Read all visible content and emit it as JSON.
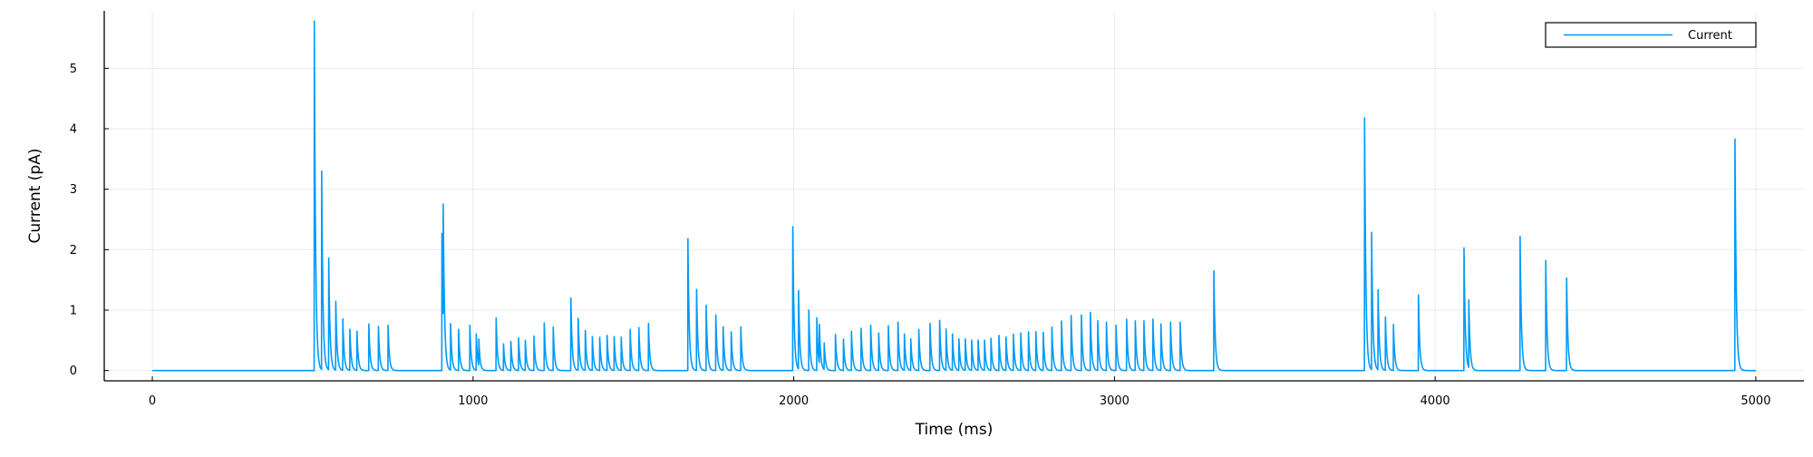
{
  "chart_data": {
    "type": "line",
    "xlabel": "Time (ms)",
    "ylabel": "Current (pA)",
    "xlim": [
      -150,
      5150
    ],
    "ylim": [
      -0.17,
      5.95
    ],
    "xticks": [
      0,
      1000,
      2000,
      3000,
      4000,
      5000
    ],
    "xtick_labels": [
      "0",
      "1000",
      "2000",
      "3000",
      "4000",
      "5000"
    ],
    "yticks": [
      0,
      1,
      2,
      3,
      4,
      5
    ],
    "ytick_labels": [
      "0",
      "1",
      "2",
      "3",
      "4",
      "5"
    ],
    "grid": true,
    "legend_position": "top-right",
    "series": [
      {
        "name": "Current",
        "color": "#009AFA",
        "x_range": [
          0,
          5000
        ],
        "baseline": 0,
        "spike_decay_ms": 4,
        "spikes": [
          {
            "t": 505,
            "a": 5.78
          },
          {
            "t": 528,
            "a": 3.28
          },
          {
            "t": 550,
            "a": 1.85
          },
          {
            "t": 572,
            "a": 1.14
          },
          {
            "t": 594,
            "a": 0.85
          },
          {
            "t": 616,
            "a": 0.68
          },
          {
            "t": 638,
            "a": 0.65
          },
          {
            "t": 675,
            "a": 0.77
          },
          {
            "t": 705,
            "a": 0.73
          },
          {
            "t": 735,
            "a": 0.75
          },
          {
            "t": 903,
            "a": 2.27
          },
          {
            "t": 907,
            "a": 1.92
          },
          {
            "t": 930,
            "a": 0.77
          },
          {
            "t": 955,
            "a": 0.68
          },
          {
            "t": 990,
            "a": 0.75
          },
          {
            "t": 1010,
            "a": 0.6
          },
          {
            "t": 1018,
            "a": 0.44
          },
          {
            "t": 1072,
            "a": 0.87
          },
          {
            "t": 1095,
            "a": 0.44
          },
          {
            "t": 1118,
            "a": 0.48
          },
          {
            "t": 1142,
            "a": 0.54
          },
          {
            "t": 1163,
            "a": 0.5
          },
          {
            "t": 1190,
            "a": 0.57
          },
          {
            "t": 1222,
            "a": 0.79
          },
          {
            "t": 1250,
            "a": 0.72
          },
          {
            "t": 1305,
            "a": 1.2
          },
          {
            "t": 1328,
            "a": 0.86
          },
          {
            "t": 1350,
            "a": 0.66
          },
          {
            "t": 1372,
            "a": 0.56
          },
          {
            "t": 1395,
            "a": 0.55
          },
          {
            "t": 1418,
            "a": 0.58
          },
          {
            "t": 1440,
            "a": 0.56
          },
          {
            "t": 1462,
            "a": 0.55
          },
          {
            "t": 1490,
            "a": 0.68
          },
          {
            "t": 1517,
            "a": 0.71
          },
          {
            "t": 1547,
            "a": 0.78
          },
          {
            "t": 1670,
            "a": 2.18
          },
          {
            "t": 1697,
            "a": 1.34
          },
          {
            "t": 1727,
            "a": 1.08
          },
          {
            "t": 1757,
            "a": 0.92
          },
          {
            "t": 1780,
            "a": 0.72
          },
          {
            "t": 1805,
            "a": 0.64
          },
          {
            "t": 1835,
            "a": 0.72
          },
          {
            "t": 1997,
            "a": 2.38
          },
          {
            "t": 2015,
            "a": 1.3
          },
          {
            "t": 2047,
            "a": 1.0
          },
          {
            "t": 2072,
            "a": 0.87
          },
          {
            "t": 2080,
            "a": 0.65
          },
          {
            "t": 2095,
            "a": 0.44
          },
          {
            "t": 2130,
            "a": 0.6
          },
          {
            "t": 2155,
            "a": 0.52
          },
          {
            "t": 2180,
            "a": 0.65
          },
          {
            "t": 2210,
            "a": 0.7
          },
          {
            "t": 2240,
            "a": 0.75
          },
          {
            "t": 2265,
            "a": 0.62
          },
          {
            "t": 2295,
            "a": 0.74
          },
          {
            "t": 2325,
            "a": 0.8
          },
          {
            "t": 2345,
            "a": 0.6
          },
          {
            "t": 2365,
            "a": 0.52
          },
          {
            "t": 2390,
            "a": 0.68
          },
          {
            "t": 2425,
            "a": 0.78
          },
          {
            "t": 2455,
            "a": 0.83
          },
          {
            "t": 2475,
            "a": 0.68
          },
          {
            "t": 2495,
            "a": 0.6
          },
          {
            "t": 2515,
            "a": 0.52
          },
          {
            "t": 2535,
            "a": 0.52
          },
          {
            "t": 2555,
            "a": 0.5
          },
          {
            "t": 2575,
            "a": 0.5
          },
          {
            "t": 2595,
            "a": 0.5
          },
          {
            "t": 2615,
            "a": 0.53
          },
          {
            "t": 2640,
            "a": 0.58
          },
          {
            "t": 2662,
            "a": 0.55
          },
          {
            "t": 2685,
            "a": 0.6
          },
          {
            "t": 2708,
            "a": 0.62
          },
          {
            "t": 2732,
            "a": 0.64
          },
          {
            "t": 2755,
            "a": 0.64
          },
          {
            "t": 2778,
            "a": 0.63
          },
          {
            "t": 2805,
            "a": 0.72
          },
          {
            "t": 2835,
            "a": 0.82
          },
          {
            "t": 2865,
            "a": 0.91
          },
          {
            "t": 2897,
            "a": 0.92
          },
          {
            "t": 2925,
            "a": 0.96
          },
          {
            "t": 2948,
            "a": 0.82
          },
          {
            "t": 2975,
            "a": 0.8
          },
          {
            "t": 3005,
            "a": 0.75
          },
          {
            "t": 3038,
            "a": 0.85
          },
          {
            "t": 3065,
            "a": 0.82
          },
          {
            "t": 3092,
            "a": 0.82
          },
          {
            "t": 3120,
            "a": 0.85
          },
          {
            "t": 3145,
            "a": 0.77
          },
          {
            "t": 3175,
            "a": 0.8
          },
          {
            "t": 3205,
            "a": 0.8
          },
          {
            "t": 3310,
            "a": 1.65
          },
          {
            "t": 3780,
            "a": 4.18
          },
          {
            "t": 3802,
            "a": 2.27
          },
          {
            "t": 3822,
            "a": 1.32
          },
          {
            "t": 3845,
            "a": 0.88
          },
          {
            "t": 3870,
            "a": 0.76
          },
          {
            "t": 3948,
            "a": 1.25
          },
          {
            "t": 4090,
            "a": 2.03
          },
          {
            "t": 4105,
            "a": 1.12
          },
          {
            "t": 4265,
            "a": 2.22
          },
          {
            "t": 4345,
            "a": 1.82
          },
          {
            "t": 4410,
            "a": 1.53
          },
          {
            "t": 4935,
            "a": 3.83
          }
        ]
      }
    ]
  }
}
